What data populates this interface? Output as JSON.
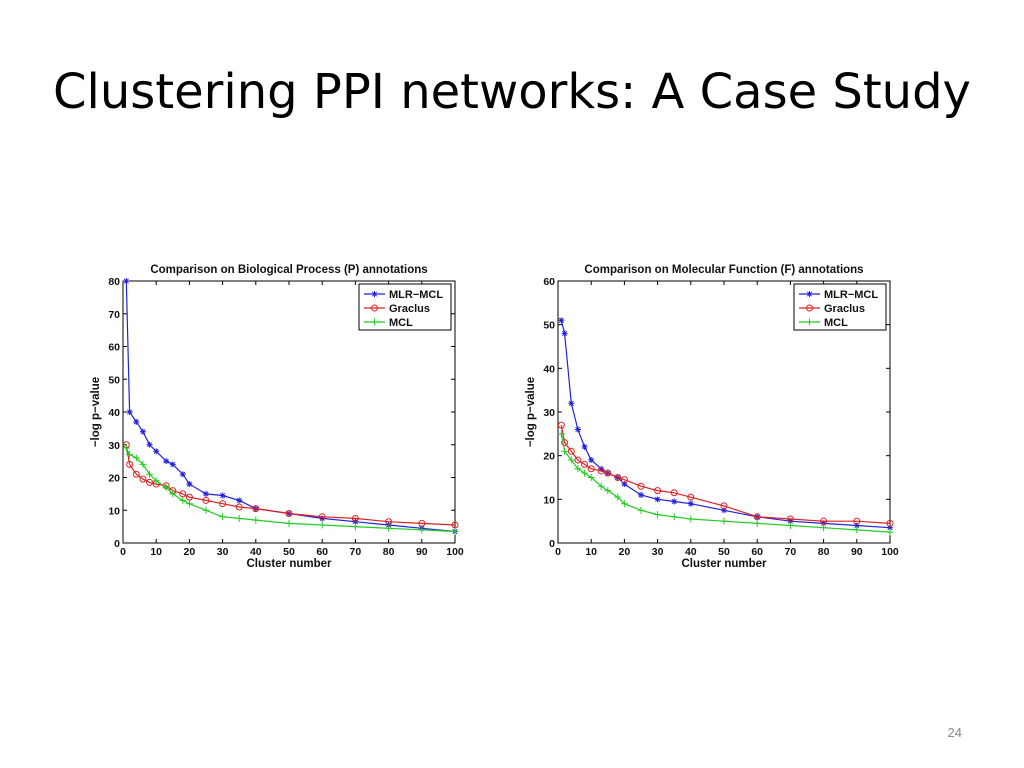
{
  "slide": {
    "title": "Clustering PPI networks: A Case Study",
    "page_number": "24"
  },
  "chart_data": [
    {
      "type": "line",
      "title": "Comparison on Biological Process (P) annotations",
      "xlabel": "Cluster number",
      "ylabel": "−log p−value",
      "xlim": [
        0,
        100
      ],
      "ylim": [
        0,
        80
      ],
      "xticks": [
        0,
        10,
        20,
        30,
        40,
        50,
        60,
        70,
        80,
        90,
        100
      ],
      "yticks": [
        0,
        10,
        20,
        30,
        40,
        50,
        60,
        70,
        80
      ],
      "legend_position": "top-right",
      "grid": false,
      "x": [
        1,
        2,
        4,
        6,
        8,
        10,
        13,
        15,
        18,
        20,
        25,
        30,
        35,
        40,
        50,
        60,
        70,
        80,
        90,
        100
      ],
      "series": [
        {
          "name": "MLR−MCL",
          "color": "#2222dd",
          "marker": "star",
          "values": [
            80,
            40,
            37,
            34,
            30,
            28,
            25,
            24,
            21,
            18,
            15,
            14.5,
            13,
            10.5,
            9,
            7.5,
            6.5,
            5.5,
            4.5,
            3.5
          ]
        },
        {
          "name": "Graclus",
          "color": "#dd2222",
          "marker": "circle",
          "values": [
            30,
            24,
            21,
            19.5,
            18.5,
            18,
            17.5,
            16,
            15,
            14,
            13,
            12,
            11,
            10.5,
            9,
            8,
            7.5,
            6.5,
            6,
            5.5
          ]
        },
        {
          "name": "MCL",
          "color": "#22cc22",
          "marker": "plus",
          "values": [
            29,
            27,
            26,
            24,
            21,
            19,
            17,
            15,
            13,
            12,
            10,
            8,
            7.5,
            7,
            6,
            5.5,
            5,
            4.5,
            4,
            3.5
          ]
        }
      ]
    },
    {
      "type": "line",
      "title": "Comparison on Molecular Function (F) annotations",
      "xlabel": "Cluster number",
      "ylabel": "−log p−value",
      "xlim": [
        0,
        100
      ],
      "ylim": [
        0,
        60
      ],
      "xticks": [
        0,
        10,
        20,
        30,
        40,
        50,
        60,
        70,
        80,
        90,
        100
      ],
      "yticks": [
        0,
        10,
        20,
        30,
        40,
        50,
        60
      ],
      "legend_position": "top-right",
      "grid": false,
      "x": [
        1,
        2,
        4,
        6,
        8,
        10,
        13,
        15,
        18,
        20,
        25,
        30,
        35,
        40,
        50,
        60,
        70,
        80,
        90,
        100
      ],
      "series": [
        {
          "name": "MLR−MCL",
          "color": "#2222dd",
          "marker": "star",
          "values": [
            51,
            48,
            32,
            26,
            22,
            19,
            17,
            16,
            15,
            13.5,
            11,
            10,
            9.5,
            9,
            7.5,
            6,
            5,
            4.5,
            4,
            3.5
          ]
        },
        {
          "name": "Graclus",
          "color": "#dd2222",
          "marker": "circle",
          "values": [
            27,
            23,
            21,
            19,
            18,
            17,
            16.5,
            16,
            15,
            14.5,
            13,
            12,
            11.5,
            10.5,
            8.5,
            6,
            5.5,
            5,
            5,
            4.5
          ]
        },
        {
          "name": "MCL",
          "color": "#22cc22",
          "marker": "plus",
          "values": [
            25,
            21,
            19,
            17,
            16,
            15,
            13,
            12,
            10.5,
            9,
            7.5,
            6.5,
            6,
            5.5,
            5,
            4.5,
            4,
            3.5,
            3,
            2.5
          ]
        }
      ]
    }
  ]
}
